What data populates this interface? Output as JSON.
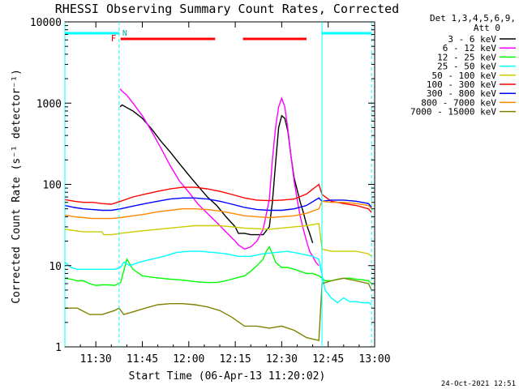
{
  "chart_data": {
    "type": "line",
    "title": "RHESSI Observing Summary Count Rates, Corrected",
    "xlabel": "Start Time (06-Apr-13 11:20:02)",
    "ylabel": "Corrected Count Rate (s⁻¹ detector⁻¹)",
    "yscale": "log",
    "ylim": [
      1,
      10000
    ],
    "xlim_minutes_after_start": [
      0,
      100
    ],
    "x_tick_labels": [
      "11:30",
      "11:45",
      "12:00",
      "12:15",
      "12:30",
      "12:45",
      "13:00"
    ],
    "x_tick_minutes": [
      10,
      25,
      40,
      55,
      70,
      85,
      100
    ],
    "y_tick_labels": [
      "1",
      "10",
      "100",
      "1000",
      "10000"
    ],
    "y_tick_values": [
      1,
      10,
      100,
      1000,
      10000
    ],
    "legend_header": [
      "Det 1,3,4,5,6,9,",
      "Att 0"
    ],
    "legend_position": "right",
    "footer_date": "24-Oct-2021 12:51",
    "markers": {
      "flare_label": "F",
      "night_label": "N",
      "night_bars": [
        [
          0,
          17.5
        ],
        [
          83,
          99
        ]
      ],
      "flare_bars": [
        [
          18,
          48.5
        ],
        [
          57.5,
          78
        ]
      ],
      "night_boundaries": [
        0,
        17.5,
        83,
        99
      ]
    },
    "colors": {
      "night": "#00ffff",
      "flare": "#ff0000",
      "axis": "#000000"
    },
    "series": [
      {
        "name": "3 - 6 keV",
        "color": "#000000",
        "x": [
          17.8,
          18.5,
          20,
          22,
          25,
          28,
          31,
          34,
          37,
          40,
          43,
          46,
          49,
          52,
          55,
          56,
          58,
          60,
          62,
          64,
          66,
          67,
          68,
          69,
          70,
          71,
          72,
          73,
          74,
          75,
          76,
          77,
          78,
          79,
          80
        ],
        "y": [
          900,
          950,
          880,
          800,
          650,
          480,
          340,
          250,
          180,
          130,
          95,
          70,
          55,
          40,
          30,
          25,
          25,
          24,
          24,
          24,
          30,
          60,
          180,
          500,
          700,
          650,
          450,
          220,
          120,
          85,
          60,
          45,
          32,
          25,
          19
        ]
      },
      {
        "name": "6 - 12 keV",
        "color": "#ff00ff",
        "x": [
          17.8,
          18.5,
          20,
          22,
          25,
          28,
          31,
          34,
          37,
          40,
          43,
          46,
          49,
          52,
          55,
          56,
          58,
          60,
          62,
          64,
          66,
          67,
          68,
          69,
          70,
          71,
          72,
          73,
          74,
          75,
          76,
          77,
          78,
          79,
          80,
          81,
          82
        ],
        "y": [
          1500,
          1400,
          1250,
          1000,
          700,
          450,
          280,
          170,
          110,
          80,
          57,
          44,
          34,
          26,
          20,
          18,
          16,
          17,
          20,
          28,
          65,
          200,
          500,
          900,
          1150,
          900,
          480,
          220,
          110,
          65,
          40,
          28,
          20,
          15,
          13,
          11,
          10
        ]
      },
      {
        "name": "12 - 25 keV",
        "color": "#00ff00",
        "x": [
          0,
          2,
          4,
          6,
          8,
          10,
          12,
          14,
          16,
          18,
          20,
          22,
          25,
          28,
          31,
          34,
          37,
          40,
          43,
          46,
          49,
          52,
          55,
          58,
          60,
          62,
          64,
          65,
          66,
          67,
          68,
          70,
          72,
          74,
          76,
          78,
          80,
          82,
          83,
          84,
          86,
          88,
          90,
          92,
          94,
          96,
          98,
          99
        ],
        "y": [
          7,
          6.8,
          6.5,
          6.5,
          6,
          5.7,
          5.8,
          5.8,
          5.7,
          6.2,
          12,
          9,
          7.5,
          7.2,
          7,
          6.8,
          6.7,
          6.5,
          6.3,
          6.2,
          6.2,
          6.5,
          7,
          7.5,
          8.5,
          10,
          12,
          15,
          17,
          14,
          11,
          9.5,
          9.5,
          9,
          8.5,
          8,
          8,
          7.5,
          7,
          6.5,
          6.5,
          6.8,
          7,
          7,
          6.8,
          6.7,
          6.5,
          6
        ]
      },
      {
        "name": "25 - 50 keV",
        "color": "#00ffff",
        "x": [
          0,
          2,
          4,
          6,
          8,
          10,
          12,
          14,
          16,
          18,
          19,
          21,
          24,
          28,
          32,
          36,
          40,
          44,
          48,
          52,
          56,
          60,
          64,
          68,
          72,
          76,
          80,
          82,
          84,
          86,
          88,
          90,
          92,
          94,
          96,
          98,
          99
        ],
        "y": [
          11,
          9.5,
          9,
          9,
          9,
          9,
          9,
          9,
          9,
          9.5,
          11,
          10,
          11,
          12,
          13,
          14.5,
          15,
          15,
          14.5,
          14,
          13,
          13,
          14,
          14.5,
          15,
          14,
          13,
          12,
          5,
          4,
          3.5,
          4,
          3.6,
          3.6,
          3.5,
          3.5,
          3.3
        ]
      },
      {
        "name": "50 - 100 keV",
        "color": "#cccc00",
        "x": [
          0,
          3,
          6,
          9,
          12,
          12.5,
          15,
          18,
          22,
          26,
          30,
          34,
          38,
          42,
          46,
          50,
          54,
          58,
          62,
          66,
          70,
          74,
          78,
          82,
          83,
          86,
          90,
          94,
          98,
          99
        ],
        "y": [
          28,
          27,
          26,
          26,
          26,
          24,
          24,
          25,
          26,
          27,
          28,
          29,
          30,
          31,
          31,
          31,
          30,
          29,
          28.5,
          28,
          29,
          30,
          31,
          33,
          16,
          15,
          15,
          15,
          14,
          13
        ]
      },
      {
        "name": "100 - 300 keV",
        "color": "#ff0000",
        "x": [
          0,
          3,
          6,
          9,
          12,
          15,
          18,
          22,
          26,
          30,
          34,
          38,
          42,
          46,
          50,
          54,
          58,
          62,
          66,
          70,
          74,
          78,
          82,
          83,
          86,
          90,
          94,
          98,
          99
        ],
        "y": [
          65,
          62,
          60,
          60,
          58,
          57,
          62,
          70,
          76,
          82,
          88,
          92,
          92,
          88,
          82,
          75,
          68,
          64,
          63,
          64,
          66,
          76,
          100,
          75,
          62,
          58,
          55,
          50,
          45
        ]
      },
      {
        "name": "300 - 800 keV",
        "color": "#0000ff",
        "x": [
          0,
          3,
          6,
          9,
          12,
          15,
          18,
          22,
          26,
          30,
          34,
          38,
          42,
          46,
          50,
          54,
          58,
          62,
          66,
          70,
          74,
          78,
          82,
          83,
          86,
          90,
          94,
          98,
          99
        ],
        "y": [
          55,
          52,
          50,
          49,
          48,
          48,
          50,
          54,
          58,
          62,
          66,
          68,
          68,
          66,
          62,
          57,
          52,
          49,
          48,
          48,
          50,
          55,
          68,
          62,
          64,
          64,
          62,
          58,
          52
        ]
      },
      {
        "name": "800 - 7000 keV",
        "color": "#ff8800",
        "x": [
          0,
          3,
          6,
          9,
          12,
          15,
          18,
          22,
          26,
          30,
          34,
          38,
          42,
          46,
          50,
          54,
          58,
          62,
          66,
          70,
          74,
          78,
          82,
          83,
          86,
          90,
          94,
          98,
          99
        ],
        "y": [
          42,
          40,
          39,
          38,
          38,
          38,
          39,
          41,
          43,
          46,
          48,
          50,
          50,
          49,
          47,
          44,
          41,
          40,
          39,
          40,
          41,
          44,
          50,
          62,
          60,
          60,
          58,
          55,
          50
        ]
      },
      {
        "name": "7000 - 15000 keV",
        "color": "#808000",
        "x": [
          0,
          4,
          8,
          12,
          16,
          17.5,
          19,
          22,
          26,
          30,
          34,
          38,
          42,
          46,
          50,
          54,
          58,
          62,
          66,
          70,
          74,
          78,
          82,
          83,
          86,
          90,
          94,
          98,
          99
        ],
        "y": [
          3,
          3,
          2.5,
          2.5,
          2.8,
          3,
          2.5,
          2.7,
          3,
          3.3,
          3.4,
          3.4,
          3.3,
          3.1,
          2.8,
          2.3,
          1.8,
          1.8,
          1.7,
          1.8,
          1.6,
          1.3,
          1.2,
          6,
          6.5,
          7,
          6.5,
          6,
          5
        ]
      }
    ]
  }
}
